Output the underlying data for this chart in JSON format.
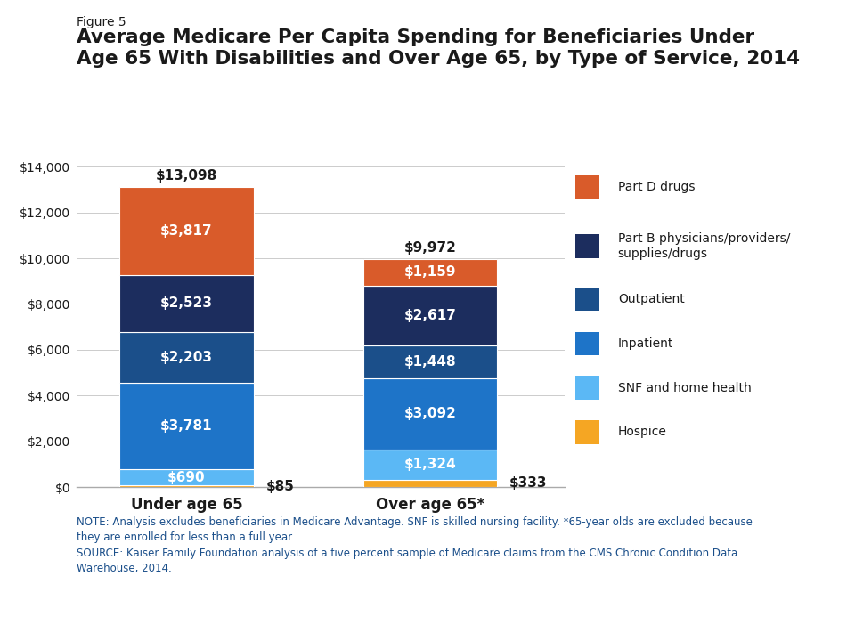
{
  "figure_label": "Figure 5",
  "title": "Average Medicare Per Capita Spending for Beneficiaries Under\nAge 65 With Disabilities and Over Age 65, by Type of Service, 2014",
  "categories": [
    "Under age 65",
    "Over age 65*"
  ],
  "totals": [
    "$13,098",
    "$9,972"
  ],
  "segments": [
    {
      "label": "Hospice",
      "color": "#F5A623",
      "values": [
        85,
        333
      ],
      "value_labels": [
        "$85",
        "$333"
      ],
      "label_outside": true
    },
    {
      "label": "SNF and home health",
      "color": "#5BB8F5",
      "values": [
        690,
        1324
      ],
      "value_labels": [
        "$690",
        "$1,324"
      ],
      "label_outside": false
    },
    {
      "label": "Inpatient",
      "color": "#1E74C8",
      "values": [
        3781,
        3092
      ],
      "value_labels": [
        "$3,781",
        "$3,092"
      ],
      "label_outside": false
    },
    {
      "label": "Outpatient",
      "color": "#1B4F8A",
      "values": [
        2203,
        1448
      ],
      "value_labels": [
        "$2,203",
        "$1,448"
      ],
      "label_outside": false
    },
    {
      "label": "Part B physicians/providers/\nsupplies/drugs",
      "color": "#1C2D5E",
      "values": [
        2523,
        2617
      ],
      "value_labels": [
        "$2,523",
        "$2,617"
      ],
      "label_outside": false
    },
    {
      "label": "Part D drugs",
      "color": "#D95B2A",
      "values": [
        3817,
        1159
      ],
      "value_labels": [
        "$3,817",
        "$1,159"
      ],
      "label_outside": false
    }
  ],
  "ylim": [
    0,
    14000
  ],
  "yticks": [
    0,
    2000,
    4000,
    6000,
    8000,
    10000,
    12000,
    14000
  ],
  "ytick_labels": [
    "$0",
    "$2,000",
    "$4,000",
    "$6,000",
    "$8,000",
    "$10,000",
    "$12,000",
    "$14,000"
  ],
  "note_text": "NOTE: Analysis excludes beneficiaries in Medicare Advantage. SNF is skilled nursing facility. *65-year olds are excluded because\nthey are enrolled for less than a full year.\nSOURCE: Kaiser Family Foundation analysis of a five percent sample of Medicare claims from the CMS Chronic Condition Data\nWarehouse, 2014.",
  "background_color": "#FFFFFF",
  "bar_width": 0.55,
  "text_color_white": "#FFFFFF",
  "text_color_dark": "#1A1A1A",
  "title_color": "#1A1A1A",
  "note_color": "#1B4F8A",
  "figure_label_color": "#1A1A1A",
  "axis_color": "#1A1A1A",
  "legend_items": [
    {
      "label": "Part D drugs",
      "color": "#D95B2A"
    },
    {
      "label": "Part B physicians/providers/\nsupplies/drugs",
      "color": "#1C2D5E"
    },
    {
      "label": "Outpatient",
      "color": "#1B4F8A"
    },
    {
      "label": "Inpatient",
      "color": "#1E74C8"
    },
    {
      "label": "SNF and home health",
      "color": "#5BB8F5"
    },
    {
      "label": "Hospice",
      "color": "#F5A623"
    }
  ]
}
